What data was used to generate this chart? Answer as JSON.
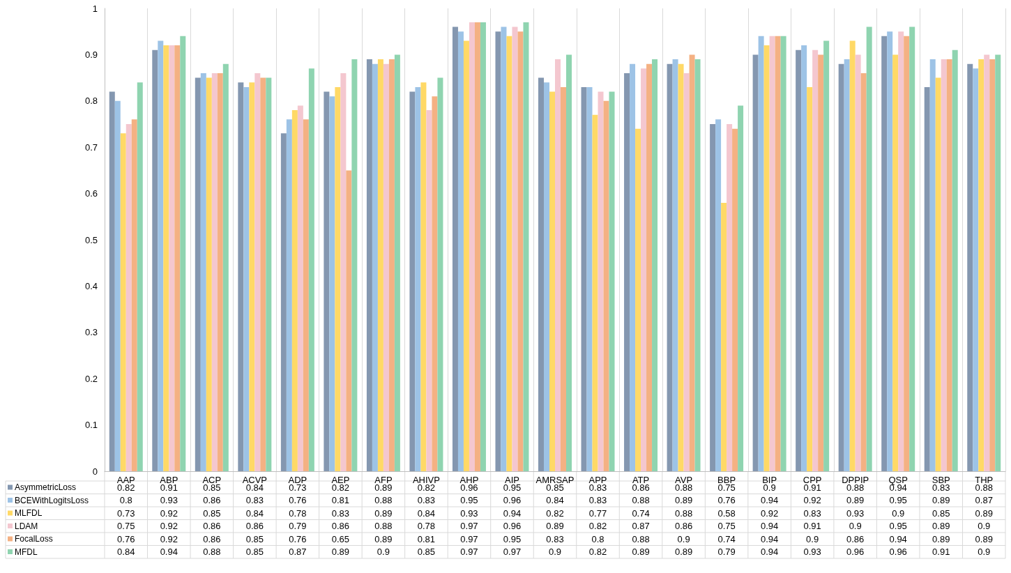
{
  "chart_data": {
    "type": "bar",
    "categories": [
      "AAP",
      "ABP",
      "ACP",
      "ACVP",
      "ADP",
      "AEP",
      "AFP",
      "AHIVP",
      "AHP",
      "AIP",
      "AMRSAP",
      "APP",
      "ATP",
      "AVP",
      "BBP",
      "BIP",
      "CPP",
      "DPPIP",
      "QSP",
      "SBP",
      "THP"
    ],
    "series": [
      {
        "name": "AsymmetricLoss",
        "color": "#8497b0",
        "values": [
          0.82,
          0.91,
          0.85,
          0.84,
          0.73,
          0.82,
          0.89,
          0.82,
          0.96,
          0.95,
          0.85,
          0.83,
          0.86,
          0.88,
          0.75,
          0.9,
          0.91,
          0.88,
          0.94,
          0.83,
          0.88
        ]
      },
      {
        "name": "BCEWithLogitsLoss",
        "color": "#9dc3e6",
        "values": [
          0.8,
          0.93,
          0.86,
          0.83,
          0.76,
          0.81,
          0.88,
          0.83,
          0.95,
          0.96,
          0.84,
          0.83,
          0.88,
          0.89,
          0.76,
          0.94,
          0.92,
          0.89,
          0.95,
          0.89,
          0.87
        ]
      },
      {
        "name": "MLFDL",
        "color": "#ffd966",
        "values": [
          0.73,
          0.92,
          0.85,
          0.84,
          0.78,
          0.83,
          0.89,
          0.84,
          0.93,
          0.94,
          0.82,
          0.77,
          0.74,
          0.88,
          0.58,
          0.92,
          0.83,
          0.93,
          0.9,
          0.85,
          0.89
        ]
      },
      {
        "name": "LDAM",
        "color": "#f4c7cf",
        "values": [
          0.75,
          0.92,
          0.86,
          0.86,
          0.79,
          0.86,
          0.88,
          0.78,
          0.97,
          0.96,
          0.89,
          0.82,
          0.87,
          0.86,
          0.75,
          0.94,
          0.91,
          0.9,
          0.95,
          0.89,
          0.9
        ]
      },
      {
        "name": "FocalLoss",
        "color": "#f4b183",
        "values": [
          0.76,
          0.92,
          0.86,
          0.85,
          0.76,
          0.65,
          0.89,
          0.81,
          0.97,
          0.95,
          0.83,
          0.8,
          0.88,
          0.9,
          0.74,
          0.94,
          0.9,
          0.86,
          0.94,
          0.89,
          0.89
        ]
      },
      {
        "name": "MFDL",
        "color": "#8fd4b0",
        "values": [
          0.84,
          0.94,
          0.88,
          0.85,
          0.87,
          0.89,
          0.9,
          0.85,
          0.97,
          0.97,
          0.9,
          0.82,
          0.89,
          0.89,
          0.79,
          0.94,
          0.93,
          0.96,
          0.96,
          0.91,
          0.9
        ]
      }
    ],
    "ylim": [
      0,
      1
    ],
    "yticks": [
      0,
      0.1,
      0.2,
      0.3,
      0.4,
      0.5,
      0.6,
      0.7,
      0.8,
      0.9,
      1
    ],
    "grid": "x",
    "legend": "bottom left",
    "data_labels": true
  }
}
